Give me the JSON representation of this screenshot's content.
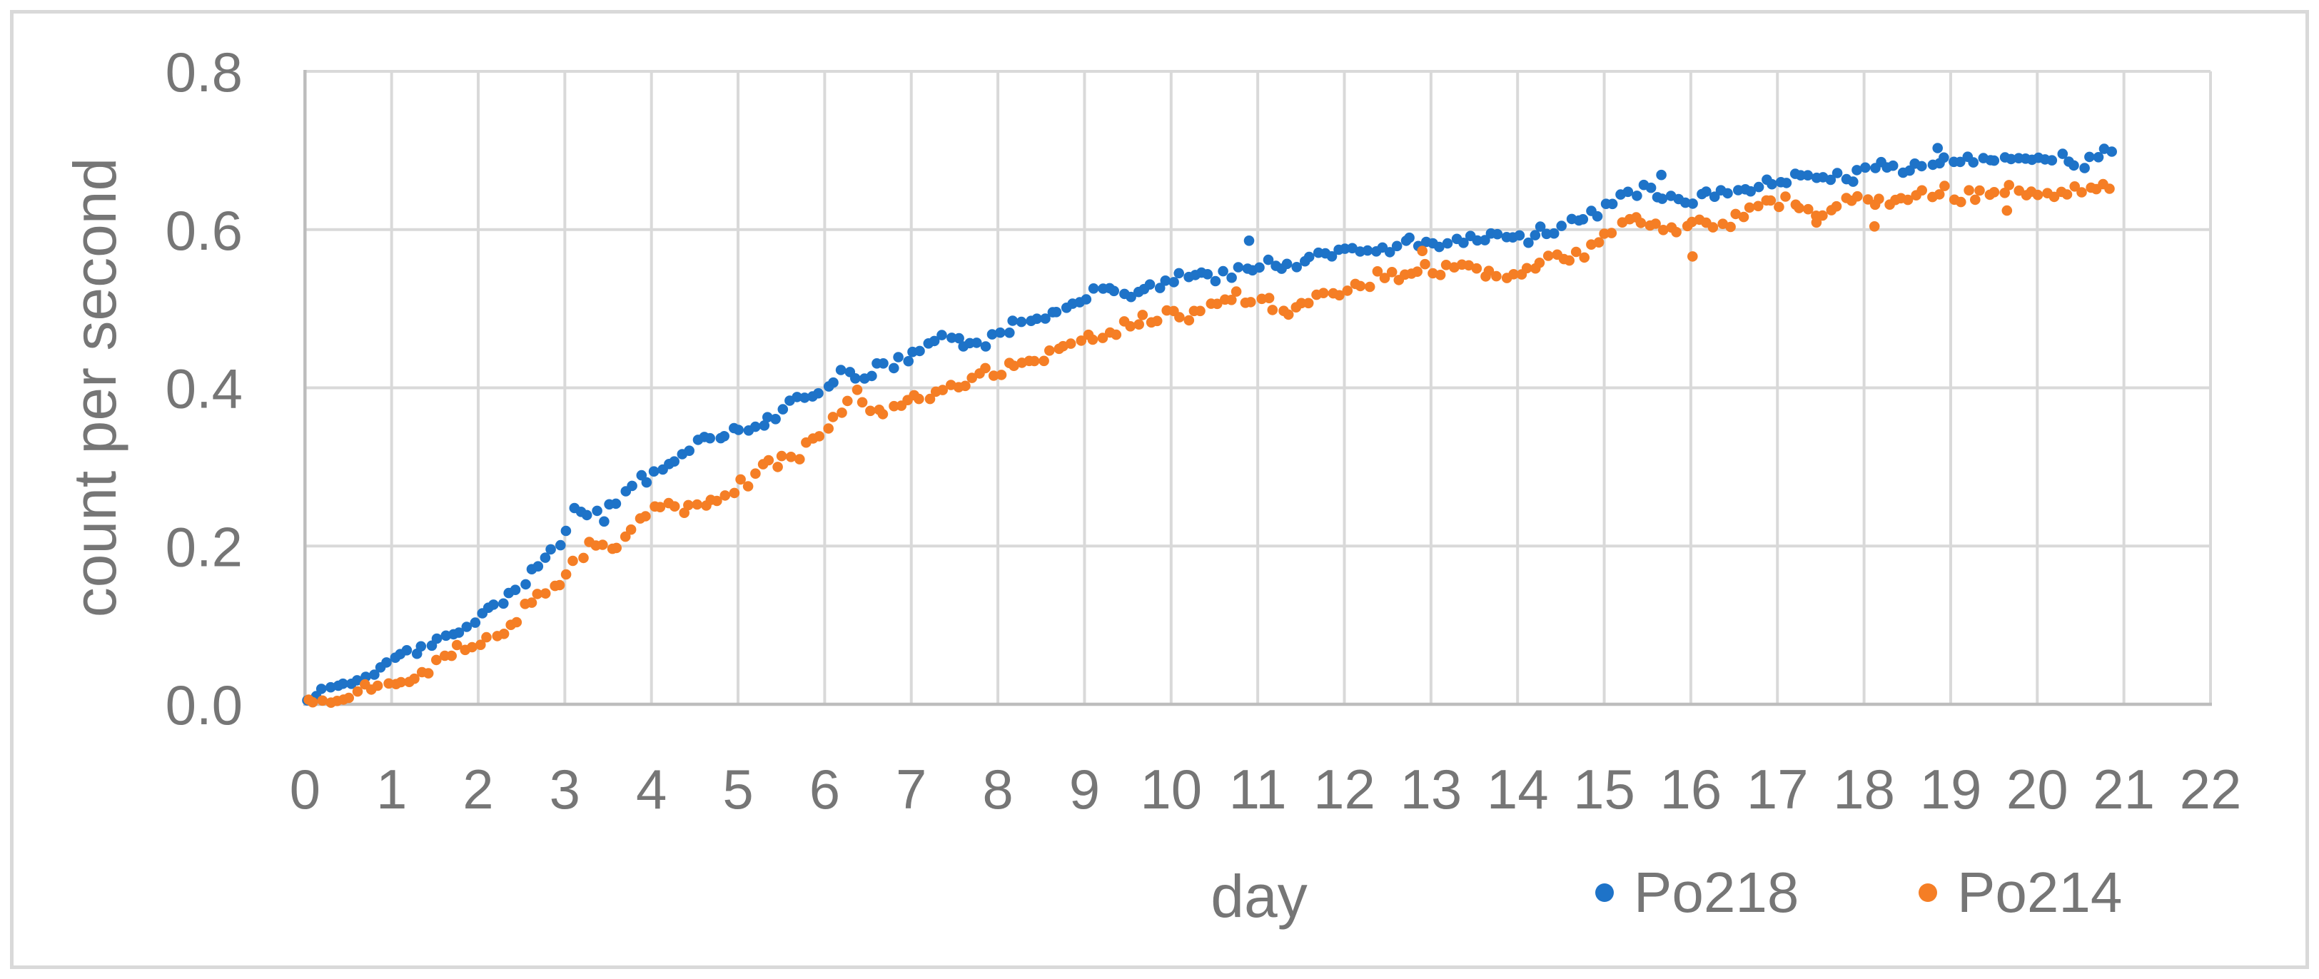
{
  "figure": {
    "background": "#FFFFFF",
    "border_color": "#D9D9D9"
  },
  "colors": {
    "grid": "#D9D9D9",
    "axis_line": "#BDBDBD",
    "text": "#767676",
    "po218": "#1E73C8",
    "po214": "#F57E25"
  },
  "chart_data": {
    "type": "scatter",
    "title": "",
    "xlabel": "day",
    "ylabel": "count per second",
    "xlim": [
      0,
      22
    ],
    "ylim": [
      0.0,
      0.8
    ],
    "grid": true,
    "legend_position": "bottom-right",
    "x_tick_labels": [
      "0",
      "1",
      "2",
      "3",
      "4",
      "5",
      "6",
      "7",
      "8",
      "9",
      "10",
      "11",
      "12",
      "13",
      "14",
      "15",
      "16",
      "17",
      "18",
      "19",
      "20",
      "21",
      "22"
    ],
    "y_tick_labels": [
      "0.0",
      "0.2",
      "0.4",
      "0.6",
      "0.8"
    ],
    "x_tick_values": [
      0,
      1,
      2,
      3,
      4,
      5,
      6,
      7,
      8,
      9,
      10,
      11,
      12,
      13,
      14,
      15,
      16,
      17,
      18,
      19,
      20,
      21,
      22
    ],
    "y_tick_values": [
      0.0,
      0.2,
      0.4,
      0.6,
      0.8
    ],
    "sample_step_days": 0.0833,
    "start_day": 0.03,
    "end_day": 20.9,
    "series": [
      {
        "name": "Po218",
        "color": "#1E73C8",
        "jitter": 0.011,
        "anchor_days": [
          0,
          0.5,
          1.0,
          1.5,
          2.0,
          2.3,
          2.6,
          2.85,
          3.0,
          3.08,
          3.25,
          3.45,
          3.7,
          4.0,
          4.3,
          4.7,
          5.0,
          5.5,
          6.0,
          6.25,
          6.45,
          6.7,
          7.0,
          7.3,
          7.55,
          7.8,
          8.0,
          8.5,
          9.0,
          9.5,
          10.0,
          10.5,
          11.0,
          11.5,
          12.0,
          12.5,
          13.0,
          13.5,
          14.0,
          14.6,
          15.0,
          15.4,
          16.0,
          16.5,
          17.0,
          17.5,
          18.0,
          18.5,
          19.0,
          19.5,
          20.0,
          20.9
        ],
        "anchor_values": [
          0.004,
          0.028,
          0.053,
          0.08,
          0.107,
          0.134,
          0.163,
          0.19,
          0.205,
          0.237,
          0.252,
          0.243,
          0.262,
          0.293,
          0.318,
          0.33,
          0.344,
          0.37,
          0.409,
          0.421,
          0.408,
          0.43,
          0.443,
          0.464,
          0.451,
          0.462,
          0.468,
          0.492,
          0.515,
          0.524,
          0.53,
          0.543,
          0.548,
          0.556,
          0.576,
          0.578,
          0.583,
          0.59,
          0.594,
          0.6,
          0.633,
          0.645,
          0.641,
          0.65,
          0.662,
          0.668,
          0.674,
          0.68,
          0.686,
          0.689,
          0.69,
          0.69
        ],
        "outliers": [
          [
            10.9,
            0.586
          ],
          [
            15.66,
            0.669
          ],
          [
            18.85,
            0.703
          ]
        ]
      },
      {
        "name": "Po214",
        "color": "#F57E25",
        "jitter": 0.011,
        "anchor_days": [
          0,
          0.5,
          1.0,
          1.5,
          2.0,
          2.3,
          2.6,
          2.85,
          3.0,
          3.15,
          3.35,
          3.6,
          4.0,
          4.4,
          4.8,
          5.0,
          5.5,
          6.0,
          6.2,
          6.35,
          6.55,
          7.0,
          7.5,
          8.0,
          8.5,
          9.0,
          9.5,
          10.0,
          10.5,
          11.0,
          11.35,
          11.7,
          12.0,
          12.5,
          13.0,
          13.5,
          14.0,
          14.5,
          15.0,
          15.45,
          15.9,
          16.3,
          16.7,
          17.0,
          17.5,
          18.0,
          18.5,
          19.0,
          19.5,
          20.0,
          20.9
        ],
        "anchor_values": [
          0.002,
          0.012,
          0.025,
          0.047,
          0.078,
          0.099,
          0.124,
          0.15,
          0.168,
          0.186,
          0.205,
          0.196,
          0.255,
          0.239,
          0.263,
          0.276,
          0.308,
          0.342,
          0.357,
          0.398,
          0.372,
          0.383,
          0.402,
          0.421,
          0.44,
          0.458,
          0.483,
          0.49,
          0.506,
          0.512,
          0.496,
          0.517,
          0.529,
          0.54,
          0.552,
          0.549,
          0.546,
          0.562,
          0.592,
          0.614,
          0.601,
          0.612,
          0.627,
          0.635,
          0.627,
          0.638,
          0.641,
          0.644,
          0.646,
          0.65,
          0.65
        ],
        "outliers": [
          [
            12.9,
            0.573
          ],
          [
            16.02,
            0.566
          ],
          [
            17.45,
            0.609
          ],
          [
            18.12,
            0.604
          ],
          [
            19.65,
            0.624
          ]
        ]
      }
    ]
  }
}
